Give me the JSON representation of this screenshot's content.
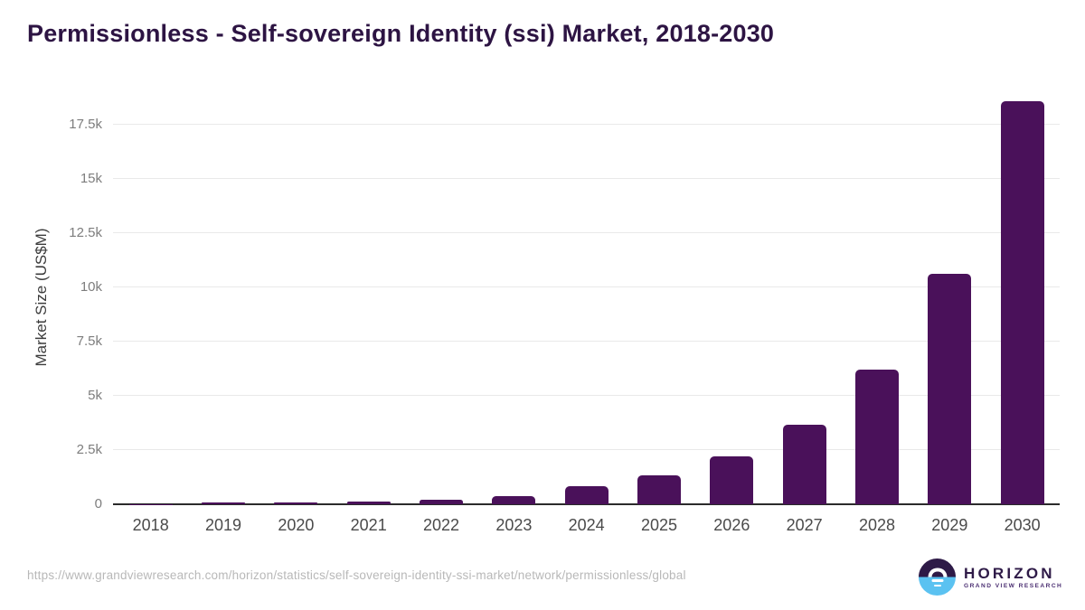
{
  "page": {
    "footer_url": "https://www.grandviewresearch.com/horizon/statistics/self-sovereign-identity-ssi-market/network/permissionless/global"
  },
  "logo": {
    "icon": "horizon-sun-circle-icon",
    "name": "HORIZON",
    "subtitle": "GRAND VIEW RESEARCH"
  },
  "colors": {
    "bar": "#4a115a",
    "title_text": "#2d1443",
    "gridline": "#e9e9e9",
    "axis_line": "#2b2b2b",
    "logo_dark": "#2e1a47",
    "logo_blue": "#5bc2f1",
    "logo_sub_text": "#4b2f72"
  },
  "chart_data": {
    "type": "bar",
    "title": "Permissionless - Self-sovereign Identity (ssi) Market, 2018-2030",
    "xlabel": "",
    "ylabel": "Market Size (US$M)",
    "unit": "US$M",
    "categories": [
      "2018",
      "2019",
      "2020",
      "2021",
      "2022",
      "2023",
      "2024",
      "2025",
      "2026",
      "2027",
      "2028",
      "2029",
      "2030"
    ],
    "values": [
      12,
      70,
      75,
      140,
      215,
      375,
      850,
      1320,
      2200,
      3660,
      6200,
      10650,
      18600
    ],
    "ylim": [
      0,
      19100
    ],
    "ytick_values": [
      0,
      2500,
      5000,
      7500,
      10000,
      12500,
      15000,
      17500
    ],
    "ytick_labels": [
      "0",
      "2.5k",
      "5k",
      "7.5k",
      "10k",
      "12.5k",
      "15k",
      "17.5k"
    ],
    "grid": "horizontal",
    "legend_position": "none",
    "bar_color": "#4a115a"
  }
}
